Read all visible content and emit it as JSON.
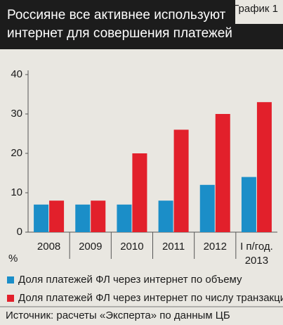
{
  "chart_data": {
    "type": "bar",
    "title": "Россияне все активнее используют интернет для совершения платежей",
    "label": "График 1",
    "y_label": "%",
    "categories": [
      "2008",
      "2009",
      "2010",
      "2011",
      "2012",
      "I п/год.\n2013"
    ],
    "series": [
      {
        "name": "Доля платежей ФЛ через интернет по объему",
        "color": "#1b8ec8",
        "values": [
          7,
          7,
          7,
          8,
          12,
          14
        ]
      },
      {
        "name": "Доля платежей ФЛ через интернет по числу транзакций",
        "color": "#e2202b",
        "values": [
          8,
          8,
          20,
          26,
          30,
          33
        ]
      }
    ],
    "ylim": [
      0,
      40
    ],
    "yticks": [
      0,
      10,
      20,
      30,
      40
    ],
    "grid": false,
    "source": "Источник: расчеты «Эксперта» по данным ЦБ"
  }
}
